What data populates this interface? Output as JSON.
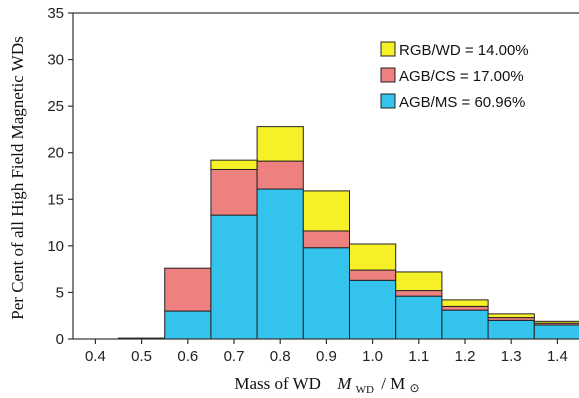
{
  "chart_data": {
    "type": "bar",
    "stacked": true,
    "categories": [
      "0.4",
      "0.5",
      "0.6",
      "0.7",
      "0.8",
      "0.9",
      "1.0",
      "1.1",
      "1.2",
      "1.3",
      "1.4"
    ],
    "series": [
      {
        "name": "AGB/MS = 60.96%",
        "color": "#33c3ec",
        "values": [
          0.0,
          0.1,
          3.0,
          13.3,
          16.1,
          9.8,
          6.3,
          4.6,
          3.1,
          2.0,
          1.5
        ]
      },
      {
        "name": "AGB/CS = 17.00%",
        "color": "#ee8080",
        "values": [
          0.0,
          0.0,
          4.6,
          4.9,
          3.0,
          1.8,
          1.1,
          0.6,
          0.4,
          0.3,
          0.2
        ]
      },
      {
        "name": "RGB/WD = 14.00%",
        "color": "#f5f028",
        "values": [
          0.0,
          0.0,
          0.0,
          1.0,
          3.7,
          4.3,
          2.8,
          2.0,
          0.7,
          0.4,
          0.2
        ]
      }
    ],
    "xlabel_prefix": "Mass of WD",
    "xlabel_symbol": "M",
    "xlabel_subscript": "WD",
    "xlabel_unit": "/ M",
    "xlabel_sun": "⊙",
    "ylabel": "Per Cent of all High Field Magnetic WDs",
    "ylim": [
      0,
      35
    ],
    "yticks": [
      0,
      5,
      10,
      15,
      20,
      25,
      30,
      35
    ],
    "legend_position": "top-right",
    "grid": false
  }
}
